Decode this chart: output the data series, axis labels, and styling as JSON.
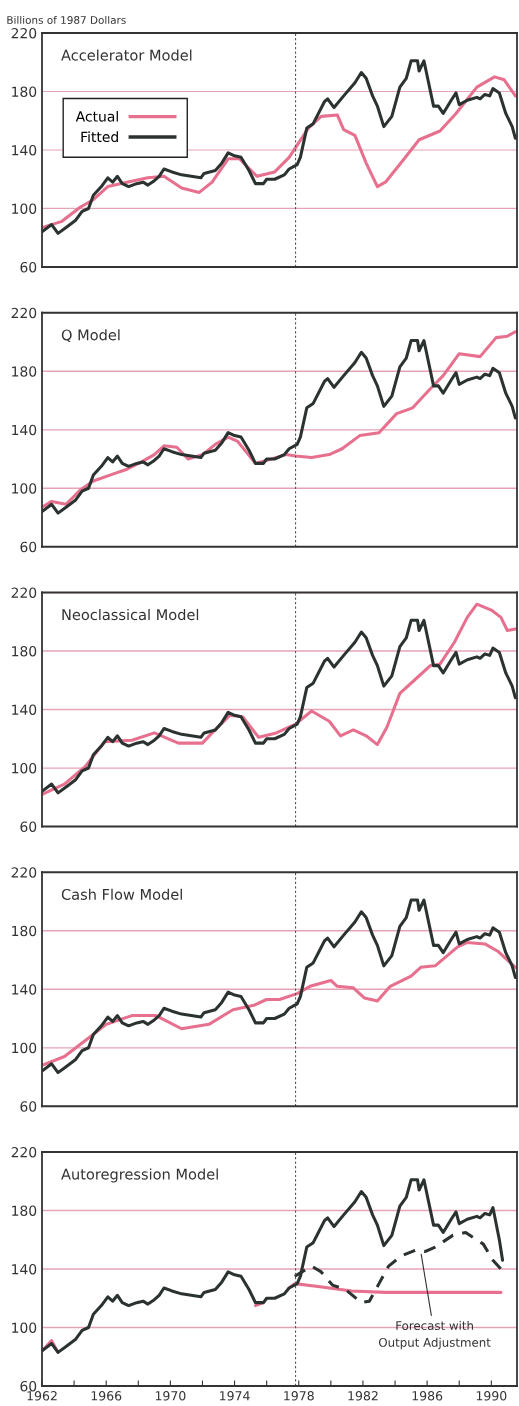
{
  "chart_data": [
    {
      "type": "line",
      "title": "Accelerator Model",
      "ylabel": "Billions of 1987 Dollars",
      "xlim": [
        1962,
        1991.6
      ],
      "ylim": [
        60,
        220
      ],
      "yticks": [
        60,
        100,
        140,
        180,
        220
      ],
      "tick_labels": "y",
      "grid": "y",
      "legend": "left",
      "ref_lines": [
        {
          "axis": "x",
          "value": 1977.8,
          "color": "#555555",
          "line_style": "dashed"
        }
      ],
      "series": [
        {
          "name": "Actual",
          "color": "#e8708f",
          "x": [
            1962.0,
            1963.2,
            1964.4,
            1965.2,
            1966.1,
            1967.3,
            1968.6,
            1969.6,
            1970.7,
            1971.8,
            1972.6,
            1973.6,
            1974.3,
            1975.4,
            1976.5,
            1977.4,
            1978.6,
            1979.4,
            1980.4,
            1980.8,
            1981.5,
            1982.2,
            1982.9,
            1983.4,
            1984.5,
            1985.5,
            1986.8,
            1987.8,
            1989.1,
            1990.2,
            1990.8,
            1991.5
          ],
          "values": [
            87,
            91,
            101,
            106,
            115,
            118,
            121,
            122,
            114,
            111,
            118,
            134,
            134,
            122,
            125,
            135,
            155,
            163,
            164,
            154,
            150,
            131,
            115,
            118,
            133,
            147,
            153,
            165,
            183,
            190,
            188,
            177
          ]
        },
        {
          "name": "Fitted",
          "color": "#2b3330",
          "x": [
            1962.0,
            1962.6,
            1963.0,
            1963.5,
            1964.1,
            1964.5,
            1964.9,
            1965.2,
            1965.7,
            1966.1,
            1966.4,
            1966.7,
            1967.0,
            1967.4,
            1967.9,
            1968.3,
            1968.6,
            1969.0,
            1969.3,
            1969.6,
            1970.1,
            1970.7,
            1971.3,
            1971.9,
            1972.1,
            1972.8,
            1973.2,
            1973.6,
            1974.0,
            1974.4,
            1974.9,
            1975.3,
            1975.8,
            1976.0,
            1976.5,
            1977.1,
            1977.4,
            1977.9,
            1978.1,
            1978.5,
            1978.9,
            1979.6,
            1979.8,
            1980.2,
            1980.8,
            1981.5,
            1981.9,
            1982.2,
            1982.6,
            1982.9,
            1983.3,
            1983.8,
            1984.3,
            1984.7,
            1985.0,
            1985.4,
            1985.5,
            1985.8,
            1986.4,
            1986.7,
            1987.0,
            1987.5,
            1987.8,
            1988.0,
            1988.5,
            1989.1,
            1989.3,
            1989.6,
            1989.9,
            1990.1,
            1990.5,
            1990.9,
            1991.3,
            1991.5
          ],
          "values": [
            84,
            89,
            83,
            87,
            92,
            98,
            100,
            109,
            115,
            121,
            118,
            122,
            117,
            115,
            117,
            118,
            116,
            119,
            122,
            127,
            125,
            123,
            122,
            121,
            124,
            126,
            131,
            138,
            136,
            135,
            126,
            117,
            117,
            120,
            120,
            123,
            127,
            130,
            135,
            155,
            158,
            173,
            175,
            169,
            177,
            186,
            193,
            189,
            177,
            170,
            156,
            163,
            183,
            189,
            201,
            201,
            194,
            201,
            170,
            170,
            165,
            174,
            179,
            171,
            174,
            176,
            175,
            178,
            177,
            182,
            179,
            165,
            156,
            148
          ]
        }
      ]
    },
    {
      "type": "line",
      "title": "Q Model",
      "xlim": [
        1962,
        1991.6
      ],
      "ylim": [
        60,
        220
      ],
      "yticks": [
        60,
        100,
        140,
        180,
        220
      ],
      "tick_labels": "y",
      "grid": "y",
      "ref_lines": [
        {
          "axis": "x",
          "value": 1977.8,
          "color": "#555555",
          "line_style": "dashed"
        }
      ],
      "series": [
        {
          "color": "#e8708f",
          "x": [
            1962.0,
            1962.6,
            1963.5,
            1964.4,
            1965.2,
            1966.5,
            1967.3,
            1968.2,
            1969.0,
            1969.6,
            1970.4,
            1971.1,
            1972.0,
            1972.8,
            1973.6,
            1974.2,
            1975.3,
            1976.3,
            1977.2,
            1977.8,
            1978.8,
            1979.9,
            1980.7,
            1981.8,
            1983.0,
            1984.1,
            1985.1,
            1986.2,
            1987.0,
            1988.0,
            1989.3,
            1990.3,
            1991.0,
            1991.5
          ],
          "values": [
            87,
            91,
            89,
            99,
            105,
            110,
            113,
            118,
            123,
            129,
            128,
            120,
            123,
            130,
            135,
            132,
            117,
            120,
            123,
            122,
            121,
            123,
            127,
            136,
            138,
            151,
            155,
            168,
            177,
            192,
            190,
            203,
            204,
            207
          ]
        },
        {
          "color": "#2b3330",
          "x": [
            1962.0,
            1962.6,
            1963.0,
            1963.5,
            1964.1,
            1964.5,
            1964.9,
            1965.2,
            1965.7,
            1966.1,
            1966.4,
            1966.7,
            1967.0,
            1967.4,
            1967.9,
            1968.3,
            1968.6,
            1969.0,
            1969.3,
            1969.6,
            1970.1,
            1970.7,
            1971.3,
            1971.9,
            1972.1,
            1972.8,
            1973.2,
            1973.6,
            1974.0,
            1974.4,
            1974.9,
            1975.3,
            1975.8,
            1976.0,
            1976.5,
            1977.1,
            1977.4,
            1977.9,
            1978.1,
            1978.5,
            1978.9,
            1979.6,
            1979.8,
            1980.2,
            1980.8,
            1981.5,
            1981.9,
            1982.2,
            1982.6,
            1982.9,
            1983.3,
            1983.8,
            1984.3,
            1984.7,
            1985.0,
            1985.4,
            1985.5,
            1985.8,
            1986.4,
            1986.7,
            1987.0,
            1987.5,
            1987.8,
            1988.0,
            1988.5,
            1989.1,
            1989.3,
            1989.6,
            1989.9,
            1990.1,
            1990.5,
            1990.9,
            1991.3,
            1991.5
          ],
          "values": [
            84,
            89,
            83,
            87,
            92,
            98,
            100,
            109,
            115,
            121,
            118,
            122,
            117,
            115,
            117,
            118,
            116,
            119,
            122,
            127,
            125,
            123,
            122,
            121,
            124,
            126,
            131,
            138,
            136,
            135,
            126,
            117,
            117,
            120,
            120,
            123,
            127,
            130,
            135,
            155,
            158,
            173,
            175,
            169,
            177,
            186,
            193,
            189,
            177,
            170,
            156,
            163,
            183,
            189,
            201,
            201,
            194,
            201,
            170,
            170,
            165,
            174,
            179,
            171,
            174,
            176,
            175,
            178,
            177,
            182,
            179,
            165,
            156,
            148
          ]
        }
      ]
    },
    {
      "type": "line",
      "title": "Neoclassical Model",
      "xlim": [
        1962,
        1991.6
      ],
      "ylim": [
        60,
        220
      ],
      "yticks": [
        60,
        100,
        140,
        180,
        220
      ],
      "tick_labels": "y",
      "grid": "y",
      "ref_lines": [
        {
          "axis": "x",
          "value": 1977.8,
          "color": "#555555",
          "line_style": "dashed"
        }
      ],
      "series": [
        {
          "color": "#e8708f",
          "x": [
            1962.0,
            1963.4,
            1964.7,
            1965.9,
            1967.6,
            1969.0,
            1970.5,
            1972.0,
            1972.6,
            1973.7,
            1974.5,
            1975.5,
            1976.6,
            1977.8,
            1978.8,
            1979.9,
            1980.6,
            1981.4,
            1982.2,
            1982.9,
            1983.5,
            1984.3,
            1985.2,
            1986.2,
            1986.8,
            1987.7,
            1988.5,
            1989.1,
            1990.0,
            1990.6,
            1991.0,
            1991.5
          ],
          "values": [
            82,
            89,
            101,
            118,
            119,
            124,
            117,
            117,
            124,
            136,
            135,
            121,
            124,
            130,
            139,
            132,
            122,
            126,
            122,
            116,
            128,
            151,
            160,
            170,
            171,
            186,
            203,
            212,
            208,
            203,
            194,
            195
          ]
        },
        {
          "color": "#2b3330",
          "x": [
            1962.0,
            1962.6,
            1963.0,
            1963.5,
            1964.1,
            1964.5,
            1964.9,
            1965.2,
            1965.7,
            1966.1,
            1966.4,
            1966.7,
            1967.0,
            1967.4,
            1967.9,
            1968.3,
            1968.6,
            1969.0,
            1969.3,
            1969.6,
            1970.1,
            1970.7,
            1971.3,
            1971.9,
            1972.1,
            1972.8,
            1973.2,
            1973.6,
            1974.0,
            1974.4,
            1974.9,
            1975.3,
            1975.8,
            1976.0,
            1976.5,
            1977.1,
            1977.4,
            1977.9,
            1978.1,
            1978.5,
            1978.9,
            1979.6,
            1979.8,
            1980.2,
            1980.8,
            1981.5,
            1981.9,
            1982.2,
            1982.6,
            1982.9,
            1983.3,
            1983.8,
            1984.3,
            1984.7,
            1985.0,
            1985.4,
            1985.5,
            1985.8,
            1986.4,
            1986.7,
            1987.0,
            1987.5,
            1987.8,
            1988.0,
            1988.5,
            1989.1,
            1989.3,
            1989.6,
            1989.9,
            1990.1,
            1990.5,
            1990.9,
            1991.3,
            1991.5
          ],
          "values": [
            84,
            89,
            83,
            87,
            92,
            98,
            100,
            109,
            115,
            121,
            118,
            122,
            117,
            115,
            117,
            118,
            116,
            119,
            122,
            127,
            125,
            123,
            122,
            121,
            124,
            126,
            131,
            138,
            136,
            135,
            126,
            117,
            117,
            120,
            120,
            123,
            127,
            130,
            135,
            155,
            158,
            173,
            175,
            169,
            177,
            186,
            193,
            189,
            177,
            170,
            156,
            163,
            183,
            189,
            201,
            201,
            194,
            201,
            170,
            170,
            165,
            174,
            179,
            171,
            174,
            176,
            175,
            178,
            177,
            182,
            179,
            165,
            156,
            148
          ]
        }
      ]
    },
    {
      "type": "line",
      "title": "Cash Flow Model",
      "xlim": [
        1962,
        1991.6
      ],
      "ylim": [
        60,
        220
      ],
      "yticks": [
        60,
        100,
        140,
        180,
        220
      ],
      "tick_labels": "y",
      "grid": "y",
      "ref_lines": [
        {
          "axis": "x",
          "value": 1977.8,
          "color": "#555555",
          "line_style": "dashed"
        }
      ],
      "series": [
        {
          "color": "#e8708f",
          "x": [
            1962.0,
            1963.4,
            1964.7,
            1966.0,
            1967.6,
            1969.1,
            1970.7,
            1972.4,
            1973.9,
            1975.2,
            1976.0,
            1976.8,
            1977.9,
            1978.7,
            1980.0,
            1980.4,
            1981.4,
            1982.1,
            1982.9,
            1983.7,
            1985.0,
            1985.6,
            1986.5,
            1987.9,
            1988.5,
            1989.6,
            1990.4,
            1991.3,
            1991.5
          ],
          "values": [
            88,
            94,
            105,
            116,
            122,
            122,
            113,
            116,
            126,
            129,
            133,
            133,
            137,
            142,
            146,
            142,
            141,
            134,
            132,
            142,
            149,
            155,
            156,
            169,
            172,
            171,
            166,
            157,
            155
          ]
        },
        {
          "color": "#2b3330",
          "x": [
            1962.0,
            1962.6,
            1963.0,
            1963.5,
            1964.1,
            1964.5,
            1964.9,
            1965.2,
            1965.7,
            1966.1,
            1966.4,
            1966.7,
            1967.0,
            1967.4,
            1967.9,
            1968.3,
            1968.6,
            1969.0,
            1969.3,
            1969.6,
            1970.1,
            1970.7,
            1971.3,
            1971.9,
            1972.1,
            1972.8,
            1973.2,
            1973.6,
            1974.0,
            1974.4,
            1974.9,
            1975.3,
            1975.8,
            1976.0,
            1976.5,
            1977.1,
            1977.4,
            1977.9,
            1978.1,
            1978.5,
            1978.9,
            1979.6,
            1979.8,
            1980.2,
            1980.8,
            1981.5,
            1981.9,
            1982.2,
            1982.6,
            1982.9,
            1983.3,
            1983.8,
            1984.3,
            1984.7,
            1985.0,
            1985.4,
            1985.5,
            1985.8,
            1986.4,
            1986.7,
            1987.0,
            1987.5,
            1987.8,
            1988.0,
            1988.5,
            1989.1,
            1989.3,
            1989.6,
            1989.9,
            1990.1,
            1990.5,
            1990.9,
            1991.3,
            1991.5
          ],
          "values": [
            84,
            89,
            83,
            87,
            92,
            98,
            100,
            109,
            115,
            121,
            118,
            122,
            117,
            115,
            117,
            118,
            116,
            119,
            122,
            127,
            125,
            123,
            122,
            121,
            124,
            126,
            131,
            138,
            136,
            135,
            126,
            117,
            117,
            120,
            120,
            123,
            127,
            130,
            135,
            155,
            158,
            173,
            175,
            169,
            177,
            186,
            193,
            189,
            177,
            170,
            156,
            163,
            183,
            189,
            201,
            201,
            194,
            201,
            170,
            170,
            165,
            174,
            179,
            171,
            174,
            176,
            175,
            178,
            177,
            182,
            179,
            165,
            156,
            148
          ]
        }
      ]
    },
    {
      "type": "line",
      "title": "Autoregression Model",
      "xlim": [
        1962,
        1991.6
      ],
      "ylim": [
        60,
        220
      ],
      "yticks": [
        60,
        100,
        140,
        180,
        220
      ],
      "grid": "y",
      "xticks": [
        1962,
        {
          "value": 1964,
          "label": null
        },
        1966,
        {
          "value": 1968,
          "label": null
        },
        1970,
        {
          "value": 1972,
          "label": null
        },
        1974,
        {
          "value": 1976,
          "label": null
        },
        1978,
        {
          "value": 1980,
          "label": null
        },
        1982,
        {
          "value": 1984,
          "label": null
        },
        1986,
        {
          "value": 1988,
          "label": null
        },
        1990
      ],
      "ref_lines": [
        {
          "axis": "x",
          "value": 1977.8,
          "color": "#555555",
          "line_style": "dashed"
        }
      ],
      "annotations": [
        {
          "text": "Forecast with\nOutput Adjustment",
          "x": 1985.6,
          "y": 152
        }
      ],
      "series": [
        {
          "color": "#e8708f",
          "x": [
            1962.0,
            1962.6,
            1963.0,
            1963.5,
            1964.1,
            1964.5,
            1964.9,
            1965.2,
            1965.7,
            1966.1,
            1966.4,
            1966.7,
            1967.0,
            1967.4,
            1967.9,
            1968.3,
            1968.6,
            1969.0,
            1969.3,
            1969.6,
            1970.1,
            1970.7,
            1971.3,
            1971.9,
            1972.1,
            1972.8,
            1973.2,
            1973.6,
            1974.0,
            1974.4,
            1974.9,
            1975.3,
            1975.8,
            1976.0,
            1976.5,
            1977.1,
            1977.4,
            1977.75,
            1979.2,
            1981.3,
            1983.4,
            1986.5,
            1990.6
          ],
          "values": [
            84,
            91,
            83,
            null,
            null,
            null,
            null,
            null,
            null,
            null,
            null,
            null,
            null,
            null,
            null,
            null,
            null,
            null,
            null,
            null,
            null,
            null,
            null,
            null,
            null,
            null,
            null,
            null,
            null,
            null,
            null,
            115,
            117,
            null,
            null,
            null,
            127,
            130,
            128,
            125,
            124,
            124,
            124
          ]
        },
        {
          "color": "#2b3330",
          "x": [
            1962.0,
            1962.6,
            1963.0,
            1963.5,
            1964.1,
            1964.5,
            1964.9,
            1965.2,
            1965.7,
            1966.1,
            1966.4,
            1966.7,
            1967.0,
            1967.4,
            1967.9,
            1968.3,
            1968.6,
            1969.0,
            1969.3,
            1969.6,
            1970.1,
            1970.7,
            1971.3,
            1971.9,
            1972.1,
            1972.8,
            1973.2,
            1973.6,
            1974.0,
            1974.4,
            1974.9,
            1975.3,
            1975.8,
            1976.0,
            1976.5,
            1977.1,
            1977.4,
            1977.9,
            1978.1,
            1978.5,
            1978.9,
            1979.6,
            1979.8,
            1980.2,
            1980.8,
            1981.5,
            1981.9,
            1982.2,
            1982.6,
            1982.9,
            1983.3,
            1983.8,
            1984.3,
            1984.7,
            1985.0,
            1985.4,
            1985.5,
            1985.8,
            1986.4,
            1986.7,
            1987.0,
            1987.5,
            1987.8,
            1988.0,
            1988.5,
            1989.1,
            1989.3,
            1989.6,
            1989.9,
            1990.1,
            1990.5,
            1990.7
          ],
          "values": [
            84,
            89,
            83,
            87,
            92,
            98,
            100,
            109,
            115,
            121,
            118,
            122,
            117,
            115,
            117,
            118,
            116,
            119,
            122,
            127,
            125,
            123,
            122,
            121,
            124,
            126,
            131,
            138,
            136,
            135,
            126,
            117,
            117,
            120,
            120,
            123,
            127,
            130,
            135,
            155,
            158,
            173,
            175,
            169,
            177,
            186,
            193,
            189,
            177,
            170,
            156,
            163,
            183,
            189,
            201,
            201,
            194,
            201,
            170,
            170,
            165,
            174,
            179,
            171,
            174,
            176,
            175,
            178,
            177,
            182,
            160,
            146
          ]
        },
        {
          "color": "#2b3330",
          "line_style": "dashed",
          "x": [
            1977.75,
            1978.2,
            1978.8,
            1979.4,
            1980.1,
            1980.9,
            1981.9,
            1982.4,
            1983.0,
            1983.6,
            1984.4,
            1985.3,
            1985.9,
            1986.5,
            1987.6,
            1988.4,
            1988.8,
            1989.5,
            1990.1,
            1990.6
          ],
          "values": [
            135,
            138,
            142,
            138,
            129,
            126,
            117,
            118,
            130,
            142,
            149,
            153,
            152,
            155,
            163,
            165,
            162,
            157,
            146,
            140
          ]
        }
      ]
    }
  ]
}
